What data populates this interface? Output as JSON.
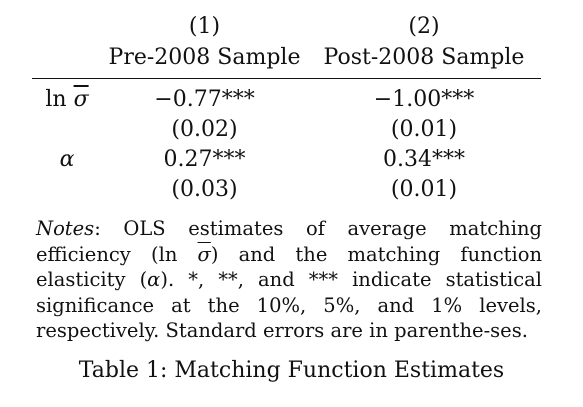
{
  "table": {
    "col_numbers": [
      "(1)",
      "(2)"
    ],
    "col_headers": [
      "Pre-2008 Sample",
      "Post-2008 Sample"
    ],
    "rows": [
      {
        "label_prefix": "ln ",
        "label_sigma": "σ",
        "coef": [
          "−0.77***",
          "−1.00***"
        ],
        "se": [
          "(0.02)",
          "(0.01)"
        ]
      },
      {
        "label_alpha": "α",
        "coef": [
          "0.27***",
          "0.34***"
        ],
        "se": [
          "(0.03)",
          "(0.01)"
        ]
      }
    ]
  },
  "notes": {
    "head": "Notes",
    "text_1": ": OLS estimates of average matching efficiency (",
    "math_ln": "ln ",
    "math_sigma": "σ",
    "text_2": ") and the matching function elasticity (",
    "math_alpha": "α",
    "text_3": "). *, **, and *** indicate statistical significance at the 10%, 5%, and 1% levels, respectively. Standard errors are in parenthe-ses."
  },
  "caption": "Table 1: Matching Function Estimates"
}
